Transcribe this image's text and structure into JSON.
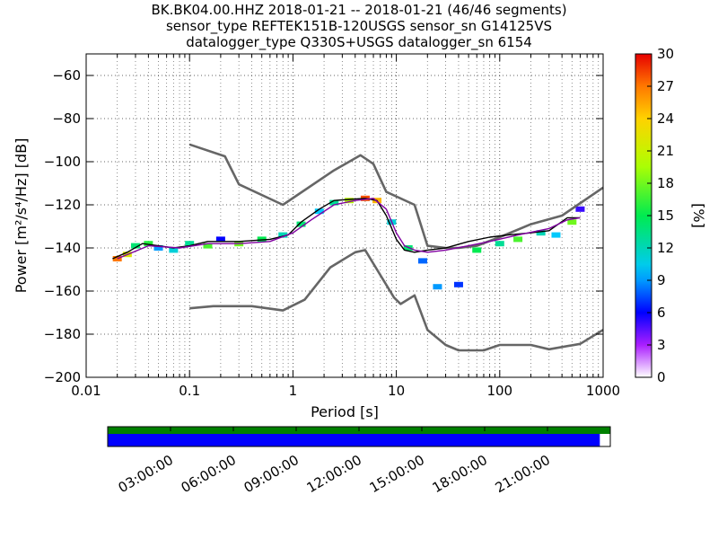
{
  "title": {
    "line1": "BK.BK04.00.HHZ   2018-01-21 -- 2018-01-21  (46/46 segments)",
    "line2": "sensor_type REFTEK151B-120USGS sensor_sn G14125VS",
    "line3": "datalogger_type Q330S+USGS datalogger_sn 6154"
  },
  "colors": {
    "model_curves": "#666666",
    "mean": "#000000",
    "coverage_bar": "#0000ff",
    "segment_bar": "#008000"
  },
  "chart_data": [
    {
      "type": "heatmap",
      "title": "BK.BK04.00.HHZ   2018-01-21 -- 2018-01-21  (46/46 segments)",
      "xlabel": "Period [s]",
      "ylabel": "Power [m²/s⁴/Hz] [dB]",
      "xscale": "log",
      "xlim": [
        0.01,
        1000
      ],
      "ylim": [
        -200,
        -50
      ],
      "grid": true,
      "x_ticks": [
        {
          "value": 0.01,
          "label": "0.01"
        },
        {
          "value": 0.1,
          "label": "0.1"
        },
        {
          "value": 1,
          "label": "1"
        },
        {
          "value": 10,
          "label": "10"
        },
        {
          "value": 100,
          "label": "100"
        },
        {
          "value": 1000,
          "label": "1000"
        }
      ],
      "y_ticks": [
        {
          "value": -60,
          "label": "−60"
        },
        {
          "value": -80,
          "label": "−80"
        },
        {
          "value": -100,
          "label": "−100"
        },
        {
          "value": -120,
          "label": "−120"
        },
        {
          "value": -140,
          "label": "−140"
        },
        {
          "value": -160,
          "label": "−160"
        },
        {
          "value": -180,
          "label": "−180"
        },
        {
          "value": -200,
          "label": "−200"
        }
      ],
      "colorbar": {
        "label": "[%]",
        "range": [
          0,
          30
        ],
        "ticks": [
          {
            "value": 0,
            "label": "0"
          },
          {
            "value": 3,
            "label": "3"
          },
          {
            "value": 6,
            "label": "6"
          },
          {
            "value": 9,
            "label": "9"
          },
          {
            "value": 12,
            "label": "12"
          },
          {
            "value": 15,
            "label": "15"
          },
          {
            "value": 18,
            "label": "18"
          },
          {
            "value": 21,
            "label": "21"
          },
          {
            "value": 24,
            "label": "24"
          },
          {
            "value": 27,
            "label": "27"
          },
          {
            "value": 30,
            "label": "30"
          }
        ]
      },
      "series": [
        {
          "x": [
            0.1,
            0.22,
            0.3,
            0.8,
            2.5,
            4.5,
            6.0,
            8.0,
            15.0,
            20.0,
            30.0,
            40.0,
            60.0,
            100.0,
            200.0,
            400.0,
            1000.0
          ],
          "y": [
            -92,
            -97.5,
            -110.5,
            -120,
            -104,
            -97,
            -101,
            -114,
            -120,
            -139,
            -140,
            -140,
            -139,
            -135,
            -129,
            -125,
            -112
          ]
        },
        {
          "x": [
            0.1,
            0.17,
            0.4,
            0.8,
            1.3,
            2.3,
            4.0,
            5.0,
            6.5,
            9.5,
            11.0,
            15.0,
            20.0,
            30.0,
            40.0,
            70.0,
            100.0,
            200.0,
            300.0,
            600.0,
            1000.0
          ],
          "y": [
            -168,
            -167,
            -167,
            -169,
            -164,
            -149,
            -142,
            -141,
            -150,
            -163,
            -166,
            -162,
            -178,
            -185,
            -187.5,
            -187.5,
            -185,
            -185,
            -187,
            -184.5,
            -178
          ]
        },
        {
          "x": [
            0.018,
            0.025,
            0.035,
            0.05,
            0.07,
            0.1,
            0.15,
            0.3,
            0.6,
            0.9,
            1.2,
            1.8,
            2.5,
            3.5,
            5.0,
            6.5,
            8.0,
            10.0,
            12.0,
            15.0,
            20.0,
            30.0,
            50.0,
            80.0,
            120.0,
            200.0,
            300.0,
            450.0,
            600.0
          ],
          "y": [
            -145,
            -142,
            -138,
            -139,
            -140,
            -139,
            -137,
            -137,
            -136,
            -134,
            -128,
            -122,
            -118,
            -117.5,
            -117,
            -118,
            -125,
            -136,
            -141,
            -142,
            -141,
            -140,
            -137,
            -135,
            -134,
            -133,
            -132,
            -126,
            -126
          ]
        },
        {
          "x": [
            0.02,
            0.04,
            0.08,
            0.15,
            0.3,
            0.6,
            1.0,
            1.5,
            2.5,
            4.0,
            6.0,
            8.0,
            10.0,
            12.0,
            15.0,
            20.0,
            30.0,
            50.0,
            80.0,
            150.0,
            300.0,
            450.0,
            600.0
          ],
          "y": [
            -145,
            -139,
            -140,
            -138,
            -138,
            -137,
            -133,
            -127,
            -120,
            -118,
            -117,
            -122,
            -133,
            -139,
            -141,
            -142,
            -141,
            -139,
            -137,
            -134,
            -131,
            -127,
            -126
          ]
        }
      ],
      "density_cells": [
        {
          "x": 0.02,
          "y": -145,
          "pct": 27
        },
        {
          "x": 0.025,
          "y": -143,
          "pct": 22
        },
        {
          "x": 0.03,
          "y": -139,
          "pct": 14
        },
        {
          "x": 0.04,
          "y": -138,
          "pct": 16
        },
        {
          "x": 0.05,
          "y": -140,
          "pct": 9
        },
        {
          "x": 0.07,
          "y": -141,
          "pct": 11
        },
        {
          "x": 0.1,
          "y": -138,
          "pct": 13
        },
        {
          "x": 0.15,
          "y": -139,
          "pct": 17
        },
        {
          "x": 0.2,
          "y": -136,
          "pct": 6
        },
        {
          "x": 0.3,
          "y": -138,
          "pct": 18
        },
        {
          "x": 0.5,
          "y": -136,
          "pct": 15
        },
        {
          "x": 0.8,
          "y": -134,
          "pct": 12
        },
        {
          "x": 1.2,
          "y": -129,
          "pct": 14
        },
        {
          "x": 1.8,
          "y": -123,
          "pct": 10
        },
        {
          "x": 2.5,
          "y": -119,
          "pct": 13
        },
        {
          "x": 3.5,
          "y": -118,
          "pct": 20
        },
        {
          "x": 5.0,
          "y": -117,
          "pct": 28
        },
        {
          "x": 6.5,
          "y": -118,
          "pct": 25
        },
        {
          "x": 9.0,
          "y": -128,
          "pct": 11
        },
        {
          "x": 13.0,
          "y": -140,
          "pct": 14
        },
        {
          "x": 18.0,
          "y": -146,
          "pct": 8
        },
        {
          "x": 25.0,
          "y": -158,
          "pct": 9
        },
        {
          "x": 40.0,
          "y": -157,
          "pct": 7
        },
        {
          "x": 60.0,
          "y": -141,
          "pct": 15
        },
        {
          "x": 100.0,
          "y": -138,
          "pct": 13
        },
        {
          "x": 150.0,
          "y": -136,
          "pct": 17
        },
        {
          "x": 250.0,
          "y": -133,
          "pct": 12
        },
        {
          "x": 350.0,
          "y": -134,
          "pct": 10
        },
        {
          "x": 500.0,
          "y": -128,
          "pct": 18
        },
        {
          "x": 600.0,
          "y": -122,
          "pct": 5
        }
      ]
    },
    {
      "type": "bar",
      "name": "segment coverage",
      "xlim": [
        "00:00:00",
        "24:00:00"
      ],
      "x_ticks": [
        "03:00:00",
        "06:00:00",
        "09:00:00",
        "12:00:00",
        "15:00:00",
        "18:00:00",
        "21:00:00"
      ],
      "segments_covered": [
        "00:00:00",
        "24:00:00"
      ],
      "data_covered": [
        "00:00:00",
        "23:30:00"
      ]
    }
  ]
}
